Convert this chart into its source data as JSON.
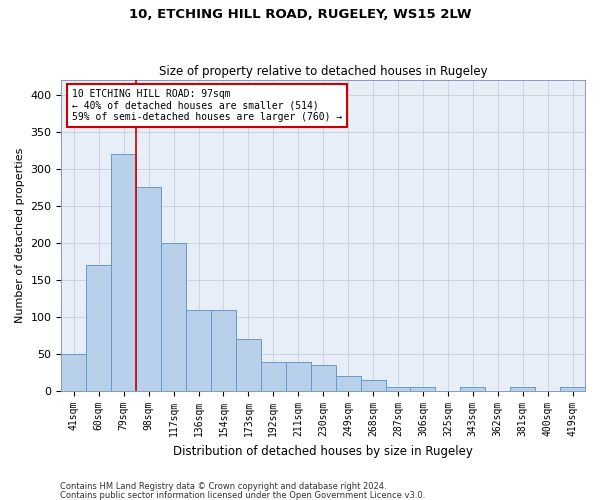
{
  "title1": "10, ETCHING HILL ROAD, RUGELEY, WS15 2LW",
  "title2": "Size of property relative to detached houses in Rugeley",
  "xlabel": "Distribution of detached houses by size in Rugeley",
  "ylabel": "Number of detached properties",
  "footer1": "Contains HM Land Registry data © Crown copyright and database right 2024.",
  "footer2": "Contains public sector information licensed under the Open Government Licence v3.0.",
  "bar_labels": [
    "41sqm",
    "60sqm",
    "79sqm",
    "98sqm",
    "117sqm",
    "136sqm",
    "154sqm",
    "173sqm",
    "192sqm",
    "211sqm",
    "230sqm",
    "249sqm",
    "268sqm",
    "287sqm",
    "306sqm",
    "325sqm",
    "343sqm",
    "362sqm",
    "381sqm",
    "400sqm",
    "419sqm"
  ],
  "bar_values": [
    50,
    170,
    320,
    275,
    200,
    110,
    110,
    70,
    40,
    40,
    35,
    20,
    15,
    5,
    5,
    0,
    5,
    0,
    5,
    0,
    5
  ],
  "bar_color": "#b8d0ea",
  "bar_edge_color": "#6699cc",
  "annotation_text": "10 ETCHING HILL ROAD: 97sqm\n← 40% of detached houses are smaller (514)\n59% of semi-detached houses are larger (760) →",
  "vline_color": "#cc0000",
  "annotation_box_color": "#ffffff",
  "annotation_box_edge": "#cc0000",
  "bg_color": "#e8eef8",
  "ylim": [
    0,
    420
  ],
  "yticks": [
    0,
    50,
    100,
    150,
    200,
    250,
    300,
    350,
    400
  ],
  "grid_color": "#c5cfe0",
  "title1_fontsize": 9.5,
  "title2_fontsize": 8.5,
  "xlabel_fontsize": 8.5,
  "ylabel_fontsize": 8,
  "tick_fontsize": 7,
  "footer_fontsize": 6,
  "annotation_fontsize": 7
}
